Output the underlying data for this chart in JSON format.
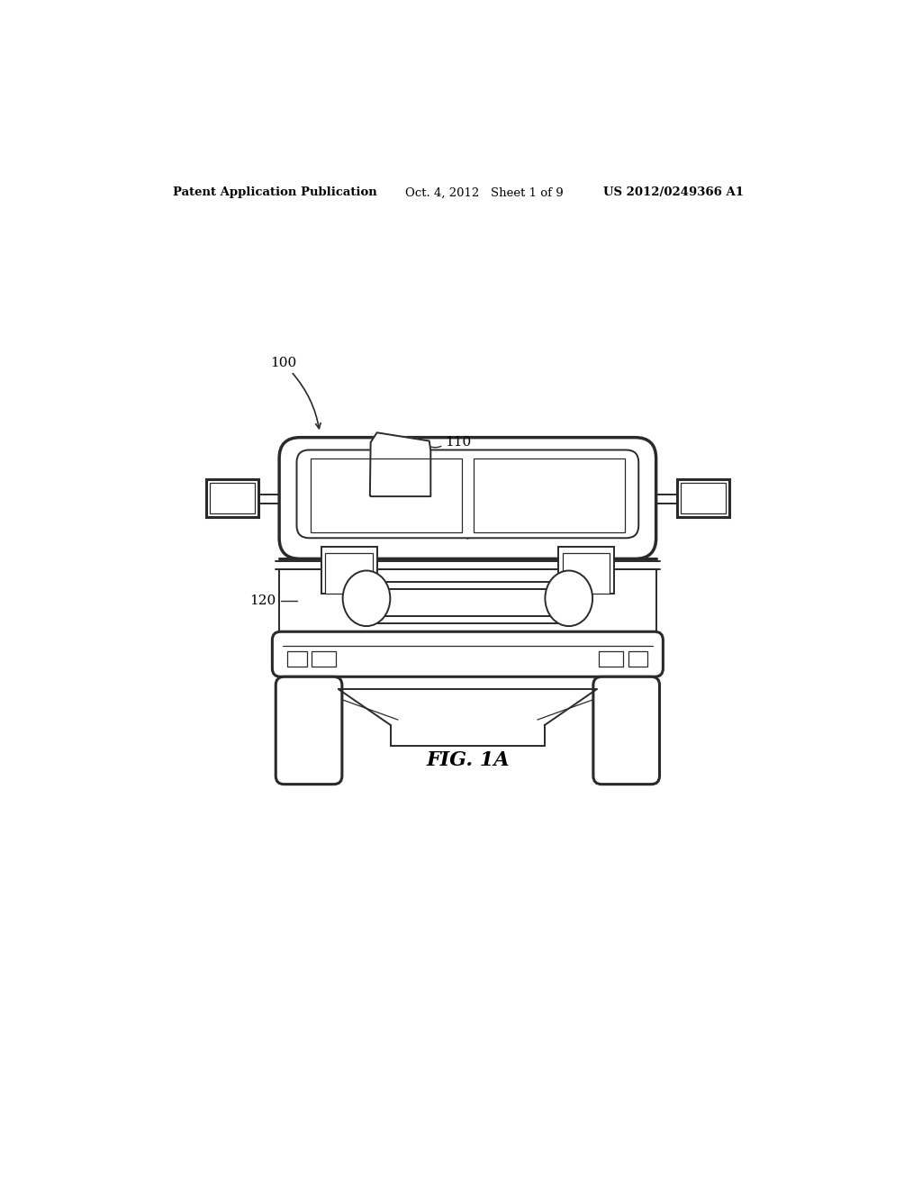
{
  "background_color": "#ffffff",
  "header_left": "Patent Application Publication",
  "header_center": "Oct. 4, 2012   Sheet 1 of 9",
  "header_right": "US 2012/0249366 A1",
  "footer_label": "FIG. 1A",
  "label_100": "100",
  "label_110": "110",
  "label_120": "120",
  "line_color": "#2a2a2a",
  "lw": 1.4,
  "lw_thin": 0.9,
  "lw_thick": 2.2,
  "lw_body": 2.5
}
